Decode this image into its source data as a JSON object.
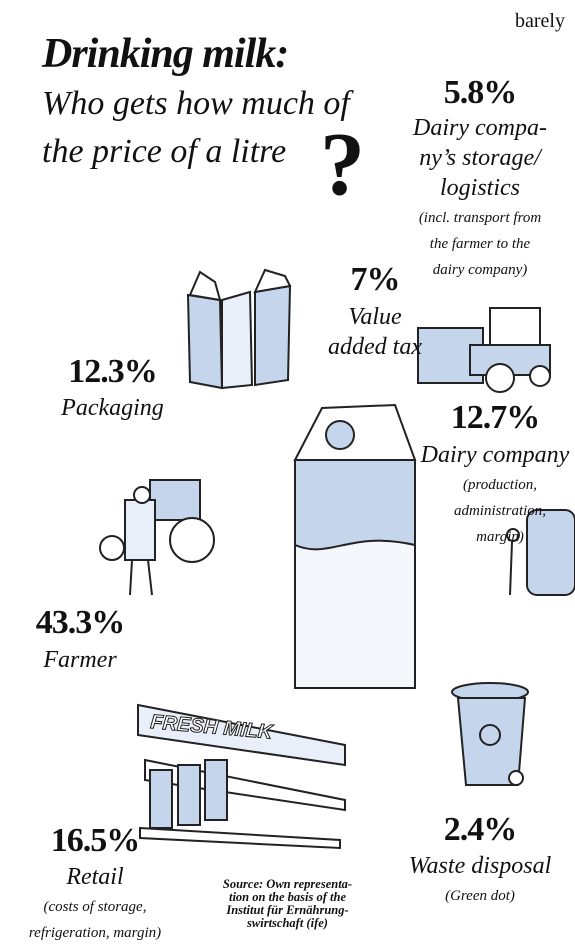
{
  "header": {
    "corner": "barely",
    "title": "Drinking milk:",
    "subtitle": "Who gets how much of\nthe price of a litre",
    "mark": "?"
  },
  "items": [
    {
      "share": "5.8%",
      "label": "Dairy compa-\nny’s storage/\nlogistics",
      "note": "(incl. transport from\nthe farmer to the\ndairy company)"
    },
    {
      "share": "7%",
      "label": "Value\nadded tax"
    },
    {
      "share": "12.3%",
      "label": "Packaging"
    },
    {
      "share": "12.7%",
      "label": "Dairy company",
      "note": "(production,\nadministration,\nmargin)"
    },
    {
      "share": "43.3%",
      "label": "Farmer"
    },
    {
      "share": "16.5%",
      "label": "Retail",
      "note": "(costs of storage,\nrefrigeration, margin)"
    },
    {
      "share": "2.4%",
      "label": "Waste disposal",
      "note": "(Green dot)"
    }
  ],
  "illustration": {
    "sign": "FRESH MILK"
  },
  "source": "Source: Own representa-\ntion on the basis of the\nInstitut für Ernährung-\nswirtschaft (ife)"
}
